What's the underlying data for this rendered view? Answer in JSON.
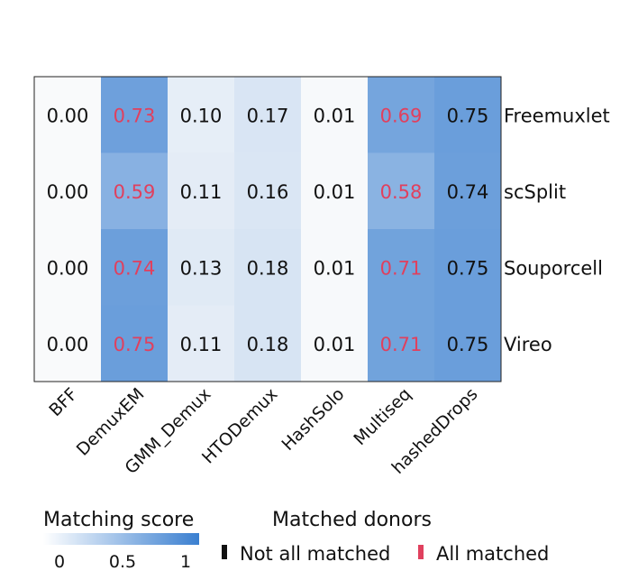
{
  "chart_data": {
    "type": "heatmap",
    "title": "",
    "rows": [
      "Freemuxlet",
      "scSplit",
      "Souporcell",
      "Vireo"
    ],
    "columns": [
      "BFF",
      "DemuxEM",
      "GMM_Demux",
      "HTODemux",
      "HashSolo",
      "Multiseq",
      "hashedDrops"
    ],
    "values": [
      [
        0.0,
        0.73,
        0.1,
        0.17,
        0.01,
        0.69,
        0.75
      ],
      [
        0.0,
        0.59,
        0.11,
        0.16,
        0.01,
        0.58,
        0.74
      ],
      [
        0.0,
        0.74,
        0.13,
        0.18,
        0.01,
        0.71,
        0.75
      ],
      [
        0.0,
        0.75,
        0.11,
        0.18,
        0.01,
        0.71,
        0.75
      ]
    ],
    "labels": [
      [
        "0.00",
        "0.73",
        "0.10",
        "0.17",
        "0.01",
        "0.69",
        "0.75"
      ],
      [
        "0.00",
        "0.59",
        "0.11",
        "0.16",
        "0.01",
        "0.58",
        "0.74"
      ],
      [
        "0.00",
        "0.74",
        "0.13",
        "0.18",
        "0.01",
        "0.71",
        "0.75"
      ],
      [
        "0.00",
        "0.75",
        "0.11",
        "0.18",
        "0.01",
        "0.71",
        "0.75"
      ]
    ],
    "all_matched": [
      [
        false,
        true,
        false,
        false,
        false,
        true,
        false
      ],
      [
        false,
        true,
        false,
        false,
        false,
        true,
        false
      ],
      [
        false,
        true,
        false,
        false,
        false,
        true,
        false
      ],
      [
        false,
        true,
        false,
        false,
        false,
        true,
        false
      ]
    ],
    "color_range": [
      0,
      1
    ],
    "colorbar": {
      "title": "Matching score",
      "ticks": [
        "0",
        "0.5",
        "1"
      ],
      "tick_values": [
        0,
        0.5,
        1
      ],
      "low_color": "#ffffff",
      "high_color": "#3a7fd0"
    },
    "match_legend": {
      "title": "Matched donors",
      "items": [
        {
          "label": "Not all matched",
          "color": "#111111"
        },
        {
          "label": "All matched",
          "color": "#e0405e"
        }
      ]
    }
  }
}
